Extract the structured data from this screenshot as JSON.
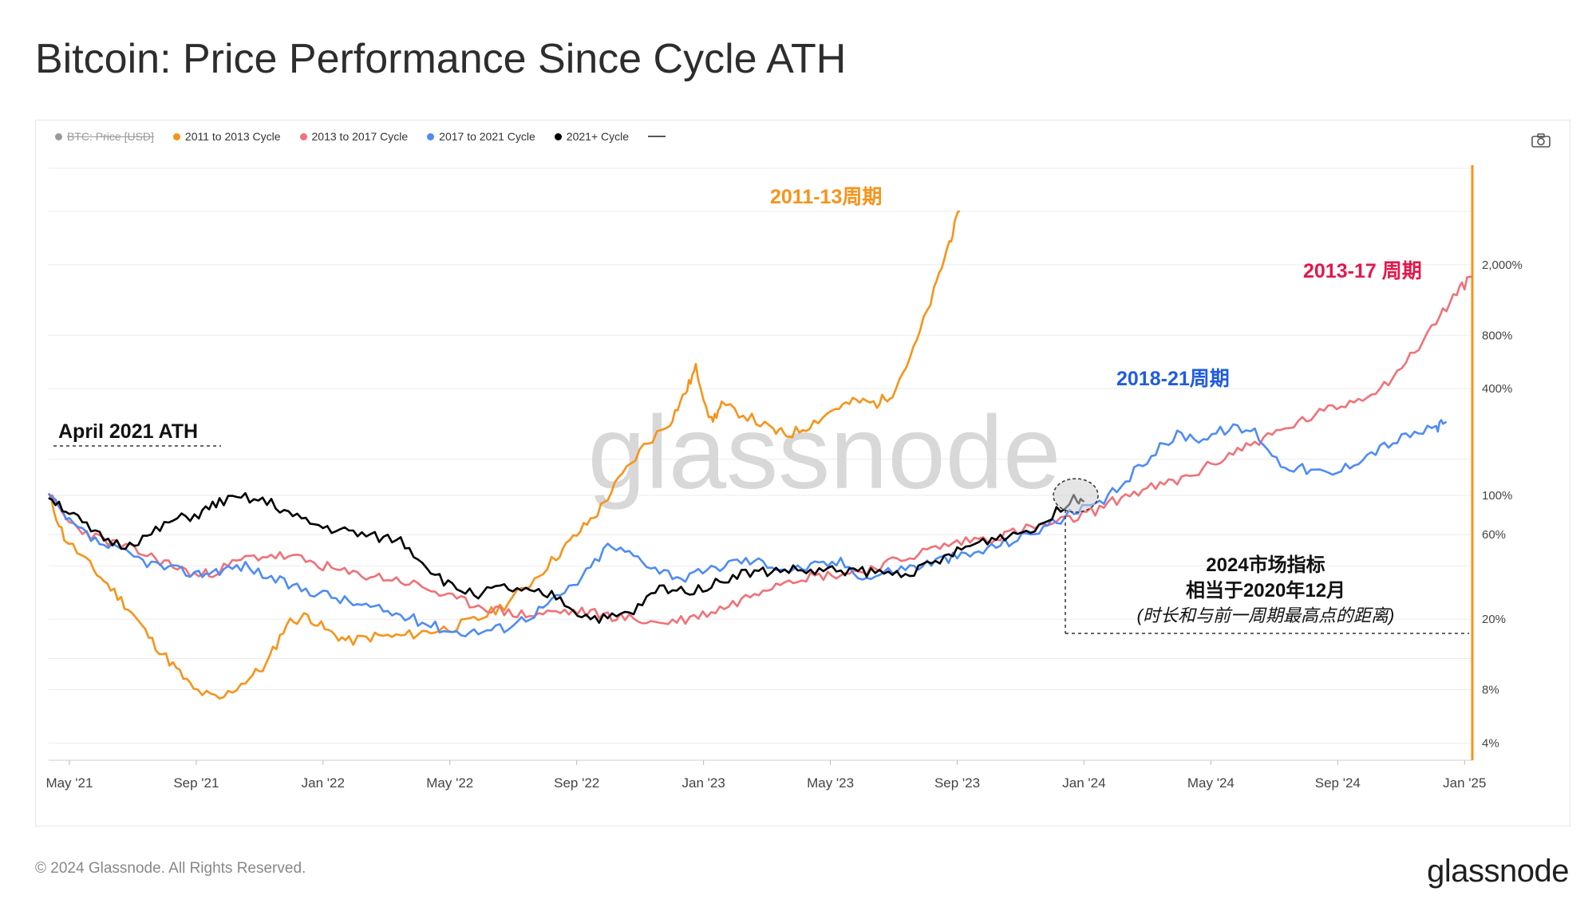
{
  "page": {
    "title": "Bitcoin: Price Performance Since Cycle ATH",
    "footer": "© 2024 Glassnode. All Rights Reserved.",
    "brand": "glassnode",
    "watermark": "glassnode"
  },
  "legend": [
    {
      "label": "BTC: Price [USD]",
      "color": "#999999",
      "disabled": true
    },
    {
      "label": "2011 to 2013 Cycle",
      "color": "#f7931a",
      "disabled": false
    },
    {
      "label": "2013 to 2017 Cycle",
      "color": "#f07178",
      "disabled": false
    },
    {
      "label": "2017 to 2021 Cycle",
      "color": "#4e8cf5",
      "disabled": false
    },
    {
      "label": "2021+ Cycle",
      "color": "#000000",
      "disabled": false
    }
  ],
  "icons": {
    "camera": "camera-icon",
    "more": "more-legend-icon"
  },
  "chart_data": {
    "type": "line",
    "x_ticks": [
      "May '21",
      "Sep '21",
      "Jan '22",
      "May '22",
      "Sep '22",
      "Jan '23",
      "May '23",
      "Sep '23",
      "Jan '24",
      "May '24",
      "Sep '24",
      "Jan '25"
    ],
    "y_ticks": [
      "2,000%",
      "800%",
      "400%",
      "100%",
      "60%",
      "20%",
      "8%",
      "4%"
    ],
    "y_scale": "log",
    "grid": true,
    "annotations": {
      "ath_label": "April 2021 ATH",
      "cycle_2011": "2011-13周期",
      "cycle_2013": "2013-17 周期",
      "cycle_2018": "2018-21周期",
      "note_line1": "2024市场指标",
      "note_line2": "相当于2020年12月",
      "note_line3": "(时长和与前一周期最高点的距离)"
    },
    "series": [
      {
        "name": "2011 to 2013 Cycle",
        "color": "#f7931a",
        "points": [
          [
            0,
            100
          ],
          [
            0.3,
            58
          ],
          [
            0.8,
            40
          ],
          [
            1.2,
            30
          ],
          [
            1.6,
            22
          ],
          [
            2.0,
            15
          ],
          [
            2.4,
            11
          ],
          [
            2.8,
            8
          ],
          [
            3.3,
            7
          ],
          [
            3.8,
            9
          ],
          [
            4.2,
            11
          ],
          [
            4.6,
            19
          ],
          [
            5.0,
            21
          ],
          [
            5.4,
            17
          ],
          [
            5.8,
            15
          ],
          [
            6.3,
            16
          ],
          [
            6.8,
            16
          ],
          [
            7.3,
            17
          ],
          [
            7.8,
            18
          ],
          [
            8.3,
            20
          ],
          [
            8.8,
            24
          ],
          [
            9.3,
            32
          ],
          [
            9.8,
            45
          ],
          [
            10.2,
            60
          ],
          [
            10.6,
            80
          ],
          [
            11.0,
            120
          ],
          [
            11.5,
            190
          ],
          [
            12.0,
            260
          ],
          [
            12.3,
            380
          ],
          [
            12.5,
            520
          ],
          [
            12.8,
            260
          ],
          [
            13.0,
            320
          ],
          [
            13.5,
            280
          ],
          [
            14.0,
            230
          ],
          [
            14.3,
            220
          ],
          [
            14.7,
            250
          ],
          [
            15.2,
            310
          ],
          [
            15.6,
            340
          ],
          [
            16.0,
            330
          ],
          [
            16.3,
            380
          ],
          [
            16.7,
            650
          ],
          [
            17.1,
            1400
          ],
          [
            17.4,
            2700
          ],
          [
            17.6,
            4000
          ]
        ]
      },
      {
        "name": "2013 to 2017 Cycle",
        "color": "#f07178",
        "points": [
          [
            0,
            100
          ],
          [
            0.4,
            70
          ],
          [
            0.9,
            58
          ],
          [
            1.4,
            52
          ],
          [
            1.9,
            46
          ],
          [
            2.4,
            40
          ],
          [
            2.9,
            35
          ],
          [
            3.3,
            38
          ],
          [
            3.8,
            44
          ],
          [
            4.3,
            46
          ],
          [
            4.8,
            44
          ],
          [
            5.3,
            40
          ],
          [
            5.8,
            36
          ],
          [
            6.3,
            35
          ],
          [
            6.8,
            33
          ],
          [
            7.3,
            30
          ],
          [
            7.8,
            26
          ],
          [
            8.3,
            24
          ],
          [
            8.8,
            22
          ],
          [
            9.3,
            21
          ],
          [
            9.8,
            22
          ],
          [
            10.3,
            22
          ],
          [
            10.8,
            21
          ],
          [
            11.3,
            20
          ],
          [
            11.8,
            19
          ],
          [
            12.3,
            20
          ],
          [
            12.8,
            22
          ],
          [
            13.3,
            25
          ],
          [
            13.8,
            30
          ],
          [
            14.3,
            34
          ],
          [
            14.8,
            35
          ],
          [
            15.3,
            36
          ],
          [
            15.8,
            38
          ],
          [
            16.3,
            42
          ],
          [
            16.8,
            47
          ],
          [
            17.3,
            52
          ],
          [
            17.8,
            56
          ],
          [
            18.3,
            58
          ],
          [
            18.8,
            64
          ],
          [
            19.3,
            68
          ],
          [
            19.8,
            74
          ],
          [
            20.3,
            84
          ],
          [
            20.8,
            100
          ],
          [
            21.3,
            110
          ],
          [
            21.8,
            120
          ],
          [
            22.3,
            140
          ],
          [
            22.8,
            170
          ],
          [
            23.3,
            200
          ],
          [
            23.8,
            230
          ],
          [
            24.3,
            270
          ],
          [
            24.8,
            310
          ],
          [
            25.3,
            350
          ],
          [
            25.8,
            420
          ],
          [
            26.3,
            600
          ],
          [
            26.8,
            950
          ],
          [
            27.2,
            1400
          ],
          [
            27.5,
            1700
          ]
        ]
      },
      {
        "name": "2017 to 2021 Cycle",
        "color": "#4e8cf5",
        "points": [
          [
            0,
            100
          ],
          [
            0.4,
            70
          ],
          [
            0.9,
            55
          ],
          [
            1.4,
            48
          ],
          [
            1.9,
            42
          ],
          [
            2.4,
            38
          ],
          [
            2.9,
            36
          ],
          [
            3.3,
            38
          ],
          [
            3.8,
            40
          ],
          [
            4.3,
            34
          ],
          [
            4.8,
            30
          ],
          [
            5.3,
            28
          ],
          [
            5.8,
            25
          ],
          [
            6.3,
            23
          ],
          [
            6.8,
            21
          ],
          [
            7.3,
            19
          ],
          [
            7.8,
            17
          ],
          [
            8.3,
            17
          ],
          [
            8.8,
            18
          ],
          [
            9.3,
            21
          ],
          [
            9.8,
            26
          ],
          [
            10.3,
            34
          ],
          [
            10.8,
            52
          ],
          [
            11.3,
            46
          ],
          [
            11.8,
            38
          ],
          [
            12.3,
            34
          ],
          [
            12.8,
            38
          ],
          [
            13.3,
            43
          ],
          [
            13.8,
            42
          ],
          [
            14.3,
            38
          ],
          [
            14.8,
            40
          ],
          [
            15.3,
            42
          ],
          [
            15.8,
            34
          ],
          [
            16.3,
            38
          ],
          [
            16.8,
            40
          ],
          [
            17.3,
            44
          ],
          [
            17.8,
            46
          ],
          [
            18.3,
            52
          ],
          [
            18.8,
            58
          ],
          [
            19.3,
            68
          ],
          [
            19.8,
            80
          ],
          [
            20.3,
            88
          ],
          [
            20.8,
            120
          ],
          [
            21.3,
            170
          ],
          [
            21.8,
            220
          ],
          [
            22.3,
            210
          ],
          [
            22.8,
            240
          ],
          [
            23.3,
            230
          ],
          [
            23.8,
            150
          ],
          [
            24.3,
            140
          ],
          [
            24.8,
            130
          ],
          [
            25.3,
            160
          ],
          [
            25.8,
            190
          ],
          [
            26.3,
            220
          ],
          [
            26.8,
            240
          ],
          [
            27.0,
            260
          ]
        ]
      },
      {
        "name": "2021+ Cycle",
        "color": "#000000",
        "points": [
          [
            0,
            100
          ],
          [
            0.4,
            80
          ],
          [
            0.9,
            60
          ],
          [
            1.4,
            52
          ],
          [
            1.9,
            58
          ],
          [
            2.4,
            72
          ],
          [
            2.9,
            78
          ],
          [
            3.3,
            92
          ],
          [
            3.8,
            96
          ],
          [
            4.3,
            90
          ],
          [
            4.8,
            74
          ],
          [
            5.3,
            66
          ],
          [
            5.8,
            62
          ],
          [
            6.3,
            58
          ],
          [
            6.8,
            56
          ],
          [
            7.3,
            40
          ],
          [
            7.8,
            30
          ],
          [
            8.3,
            28
          ],
          [
            8.8,
            30
          ],
          [
            9.3,
            28
          ],
          [
            9.8,
            27
          ],
          [
            10.3,
            21
          ],
          [
            10.8,
            20
          ],
          [
            11.3,
            22
          ],
          [
            11.8,
            30
          ],
          [
            12.3,
            29
          ],
          [
            12.8,
            31
          ],
          [
            13.3,
            36
          ],
          [
            13.8,
            37
          ],
          [
            14.3,
            38
          ],
          [
            14.8,
            37
          ],
          [
            15.3,
            38
          ],
          [
            15.8,
            37
          ],
          [
            16.3,
            36
          ],
          [
            16.8,
            38
          ],
          [
            17.3,
            44
          ],
          [
            17.8,
            52
          ],
          [
            18.3,
            58
          ],
          [
            18.8,
            62
          ],
          [
            19.3,
            72
          ],
          [
            19.8,
            100
          ],
          [
            20.0,
            92
          ]
        ]
      }
    ]
  }
}
